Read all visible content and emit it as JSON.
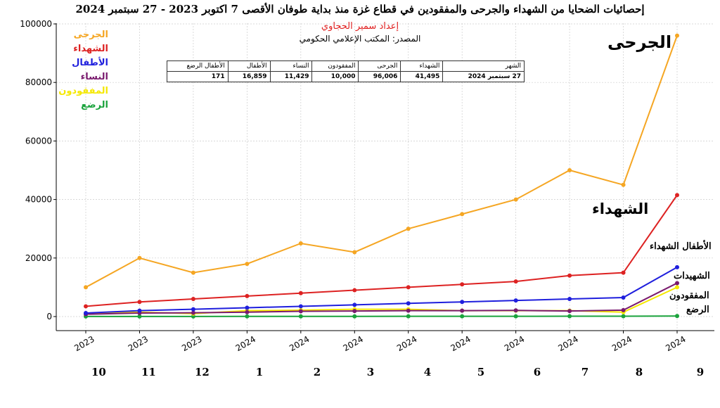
{
  "chart_data": {
    "type": "line",
    "title": "إحصائيات الضحايا من الشهداء والجرحى والمفقودين في قطاع غزة منذ بداية طوفان الأقصى 7 اكتوبر 2023 - 27 سبتمبر 2024",
    "subtitle": "إعداد سمير الحجاوي",
    "source": "المصدر: المكتب الإعلامي الحكومي",
    "x": [
      "2023",
      "2023",
      "2023",
      "2024",
      "2024",
      "2024",
      "2024",
      "2024",
      "2024",
      "2024",
      "2024",
      "2024"
    ],
    "month_numbers": [
      "10",
      "11",
      "12",
      "1",
      "2",
      "3",
      "4",
      "5",
      "6",
      "7",
      "8",
      "9"
    ],
    "ylim": [
      0,
      100000
    ],
    "yticks": [
      "0",
      "20000",
      "40000",
      "60000",
      "80000",
      "100000"
    ],
    "grid": true,
    "legend_position": "top-left",
    "series": [
      {
        "name": "الجرحى",
        "color": "#f5a623",
        "values": [
          10000,
          20000,
          15000,
          18000,
          25000,
          22000,
          30000,
          35000,
          40000,
          50000,
          45000,
          96006
        ]
      },
      {
        "name": "الشهداء",
        "color": "#dd2222",
        "values": [
          3500,
          5000,
          6000,
          7000,
          8000,
          9000,
          10000,
          11000,
          12000,
          14000,
          15000,
          41495
        ]
      },
      {
        "name": "الأطفال",
        "color": "#1f1fdd",
        "values": [
          1200,
          2000,
          2500,
          3000,
          3500,
          4000,
          4500,
          5000,
          5500,
          6000,
          6500,
          16859
        ]
      },
      {
        "name": "النساء",
        "color": "#7a1a6e",
        "values": [
          800,
          1200,
          1300,
          1500,
          1800,
          1900,
          2000,
          2000,
          2100,
          1900,
          2200,
          11429
        ]
      },
      {
        "name": "المفقودون",
        "color": "#f5e800",
        "values": [
          1000,
          1500,
          1000,
          2000,
          2200,
          2500,
          2500,
          2000,
          2000,
          2000,
          1500,
          10000
        ]
      },
      {
        "name": "الرضع",
        "color": "#1aa33c",
        "values": [
          20,
          30,
          40,
          50,
          60,
          70,
          80,
          90,
          100,
          110,
          120,
          171
        ]
      }
    ],
    "annotations": {
      "injured": "الجرحى",
      "martyrs": "الشهداء",
      "child_martyrs": "الأطفال الشهداء",
      "female_martyrs": "الشهيدات",
      "missing": "المفقودون",
      "infants": "الرضع"
    }
  },
  "summary_table": {
    "headers": [
      "الشهر",
      "الشهداء",
      "الجرحى",
      "المفقودون",
      "النساء",
      "الأطفال",
      "الأطفال الرضع"
    ],
    "row": [
      "27 سبتمبر 2024",
      "41,495",
      "96,006",
      "10,000",
      "11,429",
      "16,859",
      "171"
    ]
  }
}
